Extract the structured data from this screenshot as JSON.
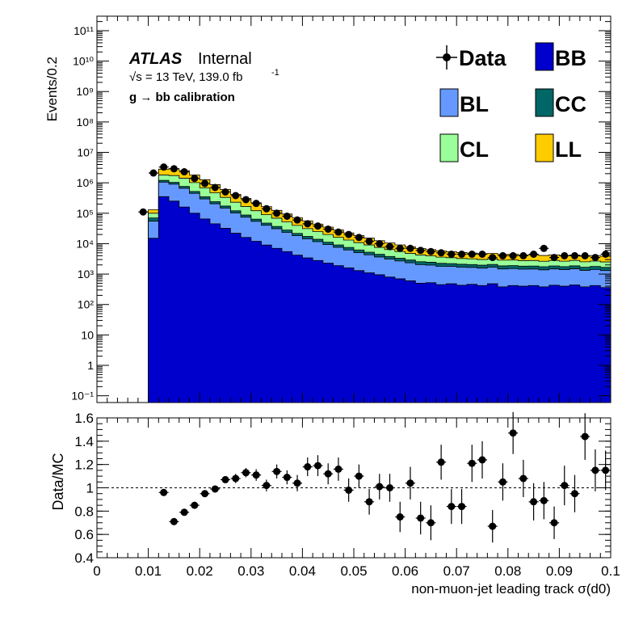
{
  "labels": {
    "experiment": "ATLAS",
    "status": "Internal",
    "energy_line": "√s = 13 TeV, 139.0 fb",
    "lumi_exponent": "-1",
    "selection": "g → bb calibration"
  },
  "colors": {
    "BB": "#0000cc",
    "BL": "#6699ff",
    "CC": "#006666",
    "CL": "#99ff99",
    "LL": "#ffcc00",
    "data": "#000000",
    "unity_line": "#000000"
  },
  "chart_data": [
    {
      "type": "area",
      "subtype": "stacked-histogram-with-data-points",
      "xlabel": "",
      "ylabel": "Events/0.2",
      "xlim": [
        0,
        0.1
      ],
      "y_scale": "log",
      "ylim": [
        0.06,
        300000000000.0
      ],
      "y_tick_labels": [
        "10⁻¹",
        "1",
        "10",
        "10²",
        "10³",
        "10⁴",
        "10⁵",
        "10⁶",
        "10⁷",
        "10⁸",
        "10⁹",
        "10¹⁰",
        "10¹¹"
      ],
      "legend_position": "top-right",
      "bin_edges": [
        0.01,
        0.012,
        0.014,
        0.016,
        0.018,
        0.02,
        0.022,
        0.024,
        0.026,
        0.028,
        0.03,
        0.032,
        0.034,
        0.036,
        0.038,
        0.04,
        0.042,
        0.044,
        0.046,
        0.048,
        0.05,
        0.052,
        0.054,
        0.056,
        0.058,
        0.06,
        0.062,
        0.064,
        0.066,
        0.068,
        0.07,
        0.072,
        0.074,
        0.076,
        0.078,
        0.08,
        0.082,
        0.084,
        0.086,
        0.088,
        0.09,
        0.092,
        0.094,
        0.096,
        0.098,
        0.1
      ],
      "series": [
        {
          "name": "BB",
          "color_key": "BB",
          "values": [
            15000,
            350000,
            250000,
            160000,
            100000,
            65000,
            45000,
            32000,
            22000,
            16000,
            12000,
            9000,
            7000,
            5500,
            4200,
            3400,
            2800,
            2300,
            1900,
            1600,
            1300,
            1100,
            950,
            800,
            700,
            600,
            500,
            520,
            450,
            480,
            430,
            460,
            420,
            480,
            380,
            420,
            400,
            420,
            380,
            430,
            400,
            440,
            380,
            420,
            360
          ]
        },
        {
          "name": "BL",
          "color_key": "BL",
          "values": [
            40000,
            700000,
            650000,
            500000,
            350000,
            230000,
            160000,
            115000,
            80000,
            58000,
            42000,
            31000,
            24000,
            18000,
            14000,
            11000,
            8800,
            7000,
            5700,
            4600,
            3800,
            3200,
            2700,
            2300,
            2000,
            1750,
            1550,
            1450,
            1350,
            1300,
            1250,
            1200,
            1150,
            1200,
            1100,
            1100,
            1050,
            1050,
            1000,
            1050,
            1000,
            1050,
            950,
            1000,
            950
          ]
        },
        {
          "name": "CC",
          "color_key": "CC",
          "values": [
            15000,
            150000,
            130000,
            100000,
            70000,
            50000,
            35000,
            25000,
            18000,
            13000,
            10000,
            7500,
            5800,
            4500,
            3500,
            2800,
            2300,
            1900,
            1500,
            1300,
            1100,
            950,
            800,
            700,
            600,
            550,
            500,
            480,
            450,
            430,
            420,
            400,
            390,
            400,
            380,
            380,
            370,
            370,
            360,
            370,
            360,
            370,
            350,
            360,
            350
          ]
        },
        {
          "name": "CL",
          "color_key": "CL",
          "values": [
            30000,
            600000,
            700000,
            650000,
            500000,
            340000,
            230000,
            160000,
            110000,
            80000,
            57000,
            42000,
            32000,
            24000,
            18000,
            14000,
            11000,
            8800,
            7000,
            5600,
            4600,
            3800,
            3100,
            2600,
            2200,
            1900,
            1700,
            1500,
            1350,
            1250,
            1150,
            1100,
            1050,
            1050,
            1000,
            1000,
            950,
            950,
            900,
            950,
            900,
            950,
            850,
            900,
            850
          ]
        },
        {
          "name": "LL",
          "color_key": "LL",
          "values": [
            30000,
            1000000,
            1200000,
            1100000,
            800000,
            580000,
            400000,
            270000,
            190000,
            140000,
            100000,
            75000,
            55000,
            42000,
            32000,
            25000,
            19000,
            15000,
            12000,
            9500,
            7500,
            6200,
            5000,
            4200,
            3600,
            3100,
            2700,
            2400,
            2200,
            2000,
            1850,
            1750,
            1650,
            1650,
            1550,
            1550,
            1500,
            1500,
            1450,
            1500,
            1400,
            1450,
            1350,
            1400,
            1350
          ]
        }
      ],
      "data_points": {
        "name": "Data",
        "x": [
          0.009,
          0.011,
          0.013,
          0.015,
          0.017,
          0.019,
          0.021,
          0.023,
          0.025,
          0.027,
          0.029,
          0.031,
          0.033,
          0.035,
          0.037,
          0.039,
          0.041,
          0.043,
          0.045,
          0.047,
          0.049,
          0.051,
          0.053,
          0.055,
          0.057,
          0.059,
          0.061,
          0.063,
          0.065,
          0.067,
          0.069,
          0.071,
          0.073,
          0.075,
          0.077,
          0.079,
          0.081,
          0.083,
          0.085,
          0.087,
          0.089,
          0.091,
          0.093,
          0.095,
          0.097,
          0.099
        ],
        "y": [
          110000,
          2100000,
          3300000,
          2900000,
          2300000,
          1400000,
          950000,
          700000,
          500000,
          380000,
          280000,
          210000,
          140000,
          100000,
          80000,
          60000,
          45000,
          38000,
          30000,
          24000,
          20000,
          16000,
          12000,
          10000,
          8000,
          7000,
          7000,
          6000,
          5500,
          5000,
          4500,
          4500,
          4500,
          4500,
          3500,
          4000,
          4000,
          4000,
          4500,
          7000,
          3500,
          4000,
          4000,
          4000,
          3500,
          4500
        ]
      }
    },
    {
      "type": "scatter",
      "subtype": "ratio-with-error-bars",
      "xlabel": "non-muon-jet leading track σ(d0)",
      "ylabel": "Data/MC",
      "xlim": [
        0,
        0.1
      ],
      "ylim": [
        0.4,
        1.6
      ],
      "x_tick_labels": [
        "0",
        "0.01",
        "0.02",
        "0.03",
        "0.04",
        "0.05",
        "0.06",
        "0.07",
        "0.08",
        "0.09",
        "0.1"
      ],
      "y_tick_labels": [
        "0.4",
        "0.6",
        "0.8",
        "1",
        "1.2",
        "1.4",
        "1.6"
      ],
      "reference_line": 1.0,
      "x": [
        0.013,
        0.015,
        0.017,
        0.019,
        0.021,
        0.023,
        0.025,
        0.027,
        0.029,
        0.031,
        0.033,
        0.035,
        0.037,
        0.039,
        0.041,
        0.043,
        0.045,
        0.047,
        0.049,
        0.051,
        0.053,
        0.055,
        0.057,
        0.059,
        0.061,
        0.063,
        0.065,
        0.067,
        0.069,
        0.071,
        0.073,
        0.075,
        0.077,
        0.079,
        0.081,
        0.083,
        0.085,
        0.087,
        0.089,
        0.091,
        0.093,
        0.095,
        0.097,
        0.099
      ],
      "y": [
        0.96,
        0.71,
        0.79,
        0.85,
        0.95,
        0.99,
        1.07,
        1.08,
        1.13,
        1.11,
        1.02,
        1.14,
        1.09,
        1.04,
        1.18,
        1.19,
        1.12,
        1.16,
        0.98,
        1.1,
        0.88,
        1.01,
        1.0,
        0.75,
        1.04,
        0.74,
        0.7,
        1.22,
        0.84,
        0.84,
        1.21,
        1.24,
        0.67,
        1.05,
        1.47,
        1.08,
        0.88,
        0.89,
        0.7,
        1.02,
        0.95,
        1.44,
        1.15,
        1.15
      ],
      "yerr": [
        0.03,
        0.03,
        0.03,
        0.03,
        0.03,
        0.03,
        0.03,
        0.04,
        0.04,
        0.05,
        0.05,
        0.06,
        0.06,
        0.07,
        0.08,
        0.09,
        0.09,
        0.1,
        0.1,
        0.1,
        0.11,
        0.11,
        0.12,
        0.13,
        0.14,
        0.14,
        0.15,
        0.15,
        0.15,
        0.15,
        0.16,
        0.16,
        0.14,
        0.16,
        0.18,
        0.16,
        0.16,
        0.16,
        0.14,
        0.17,
        0.16,
        0.2,
        0.18,
        0.17
      ]
    }
  ]
}
